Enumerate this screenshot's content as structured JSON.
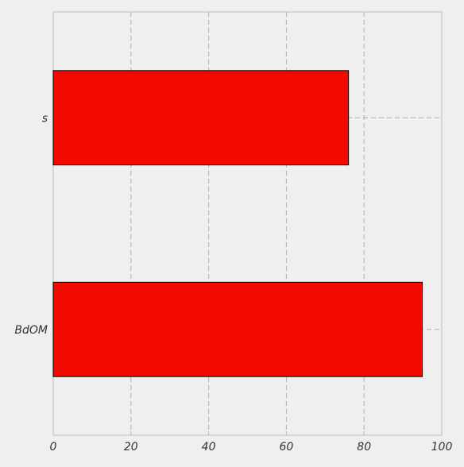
{
  "chart_data": {
    "type": "bar",
    "orientation": "horizontal",
    "title": "",
    "xlabel": "",
    "ylabel": "",
    "categories": [
      "BdOM",
      "s"
    ],
    "values": [
      95,
      76
    ],
    "xlim": [
      0,
      100
    ],
    "xticks": [
      0,
      20,
      40,
      60,
      80,
      100
    ],
    "xtick_labels": [
      "0",
      "20",
      "40",
      "60",
      "80",
      "100"
    ],
    "grid": true,
    "legend": "none",
    "colors": {
      "bar": "#f20a00",
      "bar_edge": "#000000",
      "background": "#efefef",
      "plot_border": "#bcbcbc",
      "grid": "#b0b0b0",
      "text": "#333333"
    }
  }
}
